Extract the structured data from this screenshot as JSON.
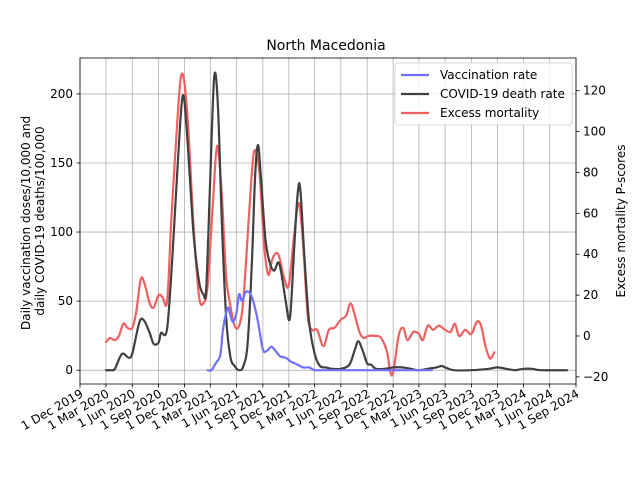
{
  "chart_data": {
    "type": "line",
    "title": "North Macedonia",
    "ylabel_left": [
      "Daily vaccination doses/10,000 and",
      "daily COVID-19 deaths/100,000"
    ],
    "ylabel_right": "Excess mortality P-scores",
    "xlabel": "",
    "x_range": [
      "2019-12-01",
      "2024-09-01"
    ],
    "ylim_left": [
      -10,
      226
    ],
    "ylim_right": [
      -23.5,
      136
    ],
    "x_ticks": [
      {
        "date": "2019-12-01",
        "label": "1 Dec 2019"
      },
      {
        "date": "2020-03-01",
        "label": "1 Mar 2020"
      },
      {
        "date": "2020-06-01",
        "label": "1 Jun 2020"
      },
      {
        "date": "2020-09-01",
        "label": "1 Sep 2020"
      },
      {
        "date": "2020-12-01",
        "label": "1 Dec 2020"
      },
      {
        "date": "2021-03-01",
        "label": "1 Mar 2021"
      },
      {
        "date": "2021-06-01",
        "label": "1 Jun 2021"
      },
      {
        "date": "2021-09-01",
        "label": "1 Sep 2021"
      },
      {
        "date": "2021-12-01",
        "label": "1 Dec 2021"
      },
      {
        "date": "2022-03-01",
        "label": "1 Mar 2022"
      },
      {
        "date": "2022-06-01",
        "label": "1 Jun 2022"
      },
      {
        "date": "2022-09-01",
        "label": "1 Sep 2022"
      },
      {
        "date": "2022-12-01",
        "label": "1 Dec 2022"
      },
      {
        "date": "2023-03-01",
        "label": "1 Mar 2023"
      },
      {
        "date": "2023-06-01",
        "label": "1 Jun 2023"
      },
      {
        "date": "2023-09-01",
        "label": "1 Sep 2023"
      },
      {
        "date": "2023-12-01",
        "label": "1 Dec 2023"
      },
      {
        "date": "2024-03-01",
        "label": "1 Mar 2024"
      },
      {
        "date": "2024-06-01",
        "label": "1 Jun 2024"
      },
      {
        "date": "2024-09-01",
        "label": "1 Sep 2024"
      }
    ],
    "y_ticks_left": [
      0,
      50,
      100,
      150,
      200
    ],
    "y_ticks_right": [
      -20,
      0,
      20,
      40,
      60,
      80,
      100,
      120
    ],
    "grid": true,
    "legend_position": "top-right",
    "series": [
      {
        "name": "Vaccination rate",
        "axis": "left",
        "color": "#7070ff",
        "points": [
          [
            "2021-02-20",
            0
          ],
          [
            "2021-03-05",
            0
          ],
          [
            "2021-03-20",
            5
          ],
          [
            "2021-04-05",
            11
          ],
          [
            "2021-04-15",
            30
          ],
          [
            "2021-05-01",
            45
          ],
          [
            "2021-05-10",
            40
          ],
          [
            "2021-05-20",
            35
          ],
          [
            "2021-06-01",
            42
          ],
          [
            "2021-06-10",
            55
          ],
          [
            "2021-06-20",
            50
          ],
          [
            "2021-07-01",
            56
          ],
          [
            "2021-07-10",
            57
          ],
          [
            "2021-07-20",
            55
          ],
          [
            "2021-08-01",
            48
          ],
          [
            "2021-08-15",
            35
          ],
          [
            "2021-09-01",
            15
          ],
          [
            "2021-09-15",
            14
          ],
          [
            "2021-10-01",
            17
          ],
          [
            "2021-10-15",
            14
          ],
          [
            "2021-11-01",
            10
          ],
          [
            "2021-11-20",
            9
          ],
          [
            "2021-12-10",
            6
          ],
          [
            "2022-01-01",
            4
          ],
          [
            "2022-01-20",
            2
          ],
          [
            "2022-02-10",
            2
          ],
          [
            "2022-03-01",
            0
          ],
          [
            "2022-04-01",
            0
          ],
          [
            "2022-06-01",
            0
          ],
          [
            "2022-09-01",
            0
          ],
          [
            "2022-12-01",
            0
          ],
          [
            "2023-03-01",
            0
          ],
          [
            "2023-04-15",
            0
          ]
        ]
      },
      {
        "name": "COVID-19 death rate",
        "axis": "left",
        "color": "#404040",
        "points": [
          [
            "2020-03-01",
            0
          ],
          [
            "2020-03-20",
            0
          ],
          [
            "2020-04-01",
            1
          ],
          [
            "2020-04-20",
            10
          ],
          [
            "2020-05-01",
            12
          ],
          [
            "2020-05-20",
            9
          ],
          [
            "2020-06-01",
            12
          ],
          [
            "2020-06-20",
            30
          ],
          [
            "2020-07-01",
            37
          ],
          [
            "2020-07-15",
            35
          ],
          [
            "2020-08-01",
            27
          ],
          [
            "2020-08-15",
            19
          ],
          [
            "2020-09-01",
            20
          ],
          [
            "2020-09-10",
            27
          ],
          [
            "2020-10-01",
            30
          ],
          [
            "2020-10-20",
            85
          ],
          [
            "2020-11-10",
            160
          ],
          [
            "2020-11-25",
            199
          ],
          [
            "2020-12-10",
            170
          ],
          [
            "2021-01-01",
            100
          ],
          [
            "2021-01-20",
            65
          ],
          [
            "2021-02-05",
            55
          ],
          [
            "2021-02-15",
            60
          ],
          [
            "2021-03-01",
            140
          ],
          [
            "2021-03-15",
            213
          ],
          [
            "2021-03-28",
            190
          ],
          [
            "2021-04-10",
            110
          ],
          [
            "2021-04-25",
            40
          ],
          [
            "2021-05-10",
            10
          ],
          [
            "2021-05-25",
            3
          ],
          [
            "2021-06-10",
            0
          ],
          [
            "2021-06-25",
            3
          ],
          [
            "2021-07-10",
            20
          ],
          [
            "2021-07-25",
            80
          ],
          [
            "2021-08-05",
            140
          ],
          [
            "2021-08-15",
            163
          ],
          [
            "2021-08-25",
            140
          ],
          [
            "2021-09-10",
            95
          ],
          [
            "2021-09-25",
            78
          ],
          [
            "2021-10-10",
            72
          ],
          [
            "2021-10-25",
            78
          ],
          [
            "2021-11-05",
            70
          ],
          [
            "2021-11-20",
            50
          ],
          [
            "2021-12-05",
            38
          ],
          [
            "2021-12-20",
            90
          ],
          [
            "2022-01-01",
            128
          ],
          [
            "2022-01-10",
            131
          ],
          [
            "2022-01-25",
            80
          ],
          [
            "2022-02-10",
            35
          ],
          [
            "2022-03-01",
            12
          ],
          [
            "2022-03-20",
            3
          ],
          [
            "2022-04-10",
            2
          ],
          [
            "2022-05-01",
            1
          ],
          [
            "2022-06-01",
            1
          ],
          [
            "2022-07-01",
            4
          ],
          [
            "2022-07-20",
            15
          ],
          [
            "2022-08-01",
            21
          ],
          [
            "2022-08-15",
            15
          ],
          [
            "2022-09-01",
            5
          ],
          [
            "2022-09-15",
            4
          ],
          [
            "2022-10-01",
            1
          ],
          [
            "2022-11-01",
            1
          ],
          [
            "2022-12-01",
            2
          ],
          [
            "2023-01-01",
            2
          ],
          [
            "2023-02-01",
            1
          ],
          [
            "2023-03-01",
            0
          ],
          [
            "2023-04-01",
            1
          ],
          [
            "2023-05-01",
            2
          ],
          [
            "2023-05-20",
            3
          ],
          [
            "2023-06-01",
            2
          ],
          [
            "2023-07-01",
            0
          ],
          [
            "2023-09-01",
            0
          ],
          [
            "2023-11-01",
            1
          ],
          [
            "2023-12-01",
            2
          ],
          [
            "2024-01-01",
            1
          ],
          [
            "2024-02-01",
            0
          ],
          [
            "2024-03-01",
            1
          ],
          [
            "2024-04-01",
            1
          ],
          [
            "2024-05-01",
            0
          ],
          [
            "2024-08-01",
            0
          ]
        ]
      },
      {
        "name": "Excess mortality",
        "axis": "right",
        "color": "#f06060",
        "points": [
          [
            "2020-03-01",
            -3
          ],
          [
            "2020-03-15",
            -1
          ],
          [
            "2020-04-01",
            -2
          ],
          [
            "2020-04-15",
            0
          ],
          [
            "2020-05-01",
            6
          ],
          [
            "2020-05-15",
            4
          ],
          [
            "2020-06-01",
            4
          ],
          [
            "2020-06-15",
            12
          ],
          [
            "2020-07-01",
            28
          ],
          [
            "2020-07-15",
            25
          ],
          [
            "2020-08-01",
            16
          ],
          [
            "2020-08-15",
            14
          ],
          [
            "2020-09-01",
            20
          ],
          [
            "2020-09-15",
            19
          ],
          [
            "2020-10-01",
            17
          ],
          [
            "2020-10-15",
            55
          ],
          [
            "2020-11-01",
            95
          ],
          [
            "2020-11-20",
            128
          ],
          [
            "2020-12-10",
            110
          ],
          [
            "2021-01-01",
            55
          ],
          [
            "2021-01-20",
            20
          ],
          [
            "2021-02-05",
            16
          ],
          [
            "2021-02-20",
            25
          ],
          [
            "2021-03-10",
            65
          ],
          [
            "2021-03-25",
            93
          ],
          [
            "2021-04-10",
            70
          ],
          [
            "2021-04-25",
            30
          ],
          [
            "2021-05-10",
            15
          ],
          [
            "2021-05-25",
            5
          ],
          [
            "2021-06-10",
            5
          ],
          [
            "2021-06-25",
            18
          ],
          [
            "2021-07-15",
            60
          ],
          [
            "2021-08-01",
            90
          ],
          [
            "2021-08-20",
            80
          ],
          [
            "2021-09-05",
            45
          ],
          [
            "2021-09-20",
            30
          ],
          [
            "2021-10-05",
            38
          ],
          [
            "2021-10-25",
            40
          ],
          [
            "2021-11-15",
            28
          ],
          [
            "2021-12-01",
            25
          ],
          [
            "2021-12-20",
            50
          ],
          [
            "2022-01-05",
            65
          ],
          [
            "2022-01-20",
            45
          ],
          [
            "2022-02-05",
            10
          ],
          [
            "2022-02-20",
            3
          ],
          [
            "2022-03-10",
            3
          ],
          [
            "2022-04-01",
            -5
          ],
          [
            "2022-04-20",
            3
          ],
          [
            "2022-05-10",
            4
          ],
          [
            "2022-06-01",
            8
          ],
          [
            "2022-06-20",
            10
          ],
          [
            "2022-07-05",
            16
          ],
          [
            "2022-07-20",
            10
          ],
          [
            "2022-08-05",
            2
          ],
          [
            "2022-08-20",
            -1
          ],
          [
            "2022-09-05",
            0
          ],
          [
            "2022-10-01",
            0
          ],
          [
            "2022-10-20",
            -1
          ],
          [
            "2022-11-10",
            -8
          ],
          [
            "2022-11-20",
            -17
          ],
          [
            "2022-12-01",
            -18
          ],
          [
            "2022-12-20",
            0
          ],
          [
            "2023-01-05",
            4
          ],
          [
            "2023-01-20",
            -2
          ],
          [
            "2023-02-10",
            2
          ],
          [
            "2023-03-01",
            1
          ],
          [
            "2023-03-15",
            -2
          ],
          [
            "2023-04-01",
            5
          ],
          [
            "2023-04-20",
            3
          ],
          [
            "2023-05-10",
            5
          ],
          [
            "2023-06-01",
            3
          ],
          [
            "2023-06-20",
            2
          ],
          [
            "2023-07-05",
            6
          ],
          [
            "2023-07-20",
            0
          ],
          [
            "2023-08-10",
            3
          ],
          [
            "2023-09-01",
            1
          ],
          [
            "2023-09-20",
            7
          ],
          [
            "2023-10-05",
            5
          ],
          [
            "2023-10-20",
            -5
          ],
          [
            "2023-11-05",
            -11
          ],
          [
            "2023-11-20",
            -8
          ]
        ]
      }
    ]
  }
}
